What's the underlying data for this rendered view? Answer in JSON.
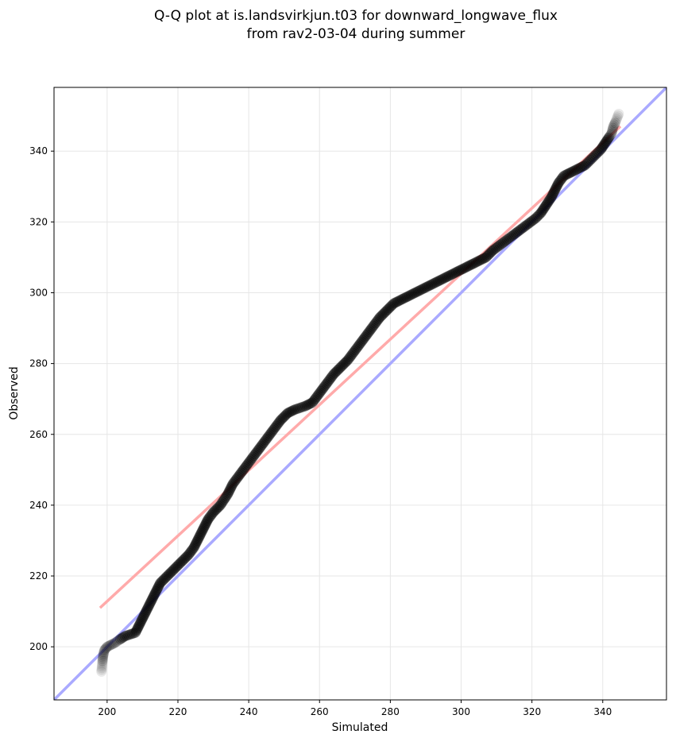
{
  "chart_data": {
    "type": "scatter",
    "title_lines": [
      "Q-Q plot at is.landsvirkjun.t03 for downward_longwave_flux",
      "from rav2-03-04 during summer"
    ],
    "xlabel": "Simulated",
    "ylabel": "Observed",
    "xlim": [
      185,
      358
    ],
    "ylim": [
      185,
      358
    ],
    "xticks": [
      200,
      220,
      240,
      260,
      280,
      300,
      320,
      340
    ],
    "yticks": [
      200,
      220,
      240,
      260,
      280,
      300,
      320,
      340
    ],
    "grid": true,
    "lines": [
      {
        "name": "1:1 line",
        "color": "#aaaaff",
        "points": [
          [
            185,
            185
          ],
          [
            358,
            358
          ]
        ]
      },
      {
        "name": "fit line",
        "color": "#ffaaaa",
        "points": [
          [
            198,
            211
          ],
          [
            345,
            347
          ]
        ]
      }
    ],
    "points": [
      [
        198.4,
        193
      ],
      [
        198.6,
        195
      ],
      [
        198.8,
        197
      ],
      [
        199.2,
        199
      ],
      [
        200,
        200
      ],
      [
        202,
        201
      ],
      [
        205,
        203
      ],
      [
        208,
        204
      ],
      [
        209,
        206
      ],
      [
        210,
        208
      ],
      [
        211,
        210
      ],
      [
        212,
        212
      ],
      [
        213,
        214
      ],
      [
        214,
        216
      ],
      [
        215,
        218
      ],
      [
        217,
        220
      ],
      [
        219,
        222
      ],
      [
        221,
        224
      ],
      [
        223,
        226
      ],
      [
        224.5,
        228
      ],
      [
        225.5,
        230
      ],
      [
        226.5,
        232
      ],
      [
        227.5,
        234
      ],
      [
        228.5,
        236
      ],
      [
        230,
        238
      ],
      [
        232,
        240
      ],
      [
        234,
        243
      ],
      [
        235.5,
        246
      ],
      [
        237,
        248
      ],
      [
        238.5,
        250
      ],
      [
        240,
        252
      ],
      [
        241.5,
        254
      ],
      [
        243,
        256
      ],
      [
        244.5,
        258
      ],
      [
        246,
        260
      ],
      [
        247.5,
        262
      ],
      [
        249,
        264
      ],
      [
        251,
        266
      ],
      [
        253,
        267
      ],
      [
        256,
        268
      ],
      [
        258,
        269
      ],
      [
        259.5,
        271
      ],
      [
        261,
        273
      ],
      [
        262.5,
        275
      ],
      [
        264,
        277
      ],
      [
        266,
        279
      ],
      [
        268,
        281
      ],
      [
        269.5,
        283
      ],
      [
        271,
        285
      ],
      [
        272.5,
        287
      ],
      [
        274,
        289
      ],
      [
        275.5,
        291
      ],
      [
        277,
        293
      ],
      [
        279,
        295
      ],
      [
        281,
        297
      ],
      [
        283,
        298
      ],
      [
        285,
        299
      ],
      [
        287,
        300
      ],
      [
        289,
        301
      ],
      [
        291,
        302
      ],
      [
        293,
        303
      ],
      [
        295,
        304
      ],
      [
        297,
        305
      ],
      [
        299,
        306
      ],
      [
        301,
        307
      ],
      [
        303,
        308
      ],
      [
        305,
        309
      ],
      [
        307,
        310
      ],
      [
        309,
        312
      ],
      [
        311,
        313.5
      ],
      [
        313,
        315
      ],
      [
        315,
        316.5
      ],
      [
        317,
        318
      ],
      [
        319,
        319.5
      ],
      [
        321,
        321
      ],
      [
        322.5,
        322.5
      ],
      [
        323.5,
        324
      ],
      [
        324.5,
        325.5
      ],
      [
        325.5,
        327
      ],
      [
        326.5,
        329
      ],
      [
        327.5,
        331
      ],
      [
        329,
        333
      ],
      [
        331,
        334
      ],
      [
        333,
        335
      ],
      [
        335,
        336
      ],
      [
        336.5,
        337.5
      ],
      [
        338,
        339
      ],
      [
        339.5,
        340.5
      ],
      [
        340.5,
        342
      ],
      [
        341.5,
        343.5
      ],
      [
        342.5,
        345
      ],
      [
        343,
        347
      ],
      [
        343.5,
        348
      ],
      [
        344.5,
        350.5
      ]
    ]
  }
}
